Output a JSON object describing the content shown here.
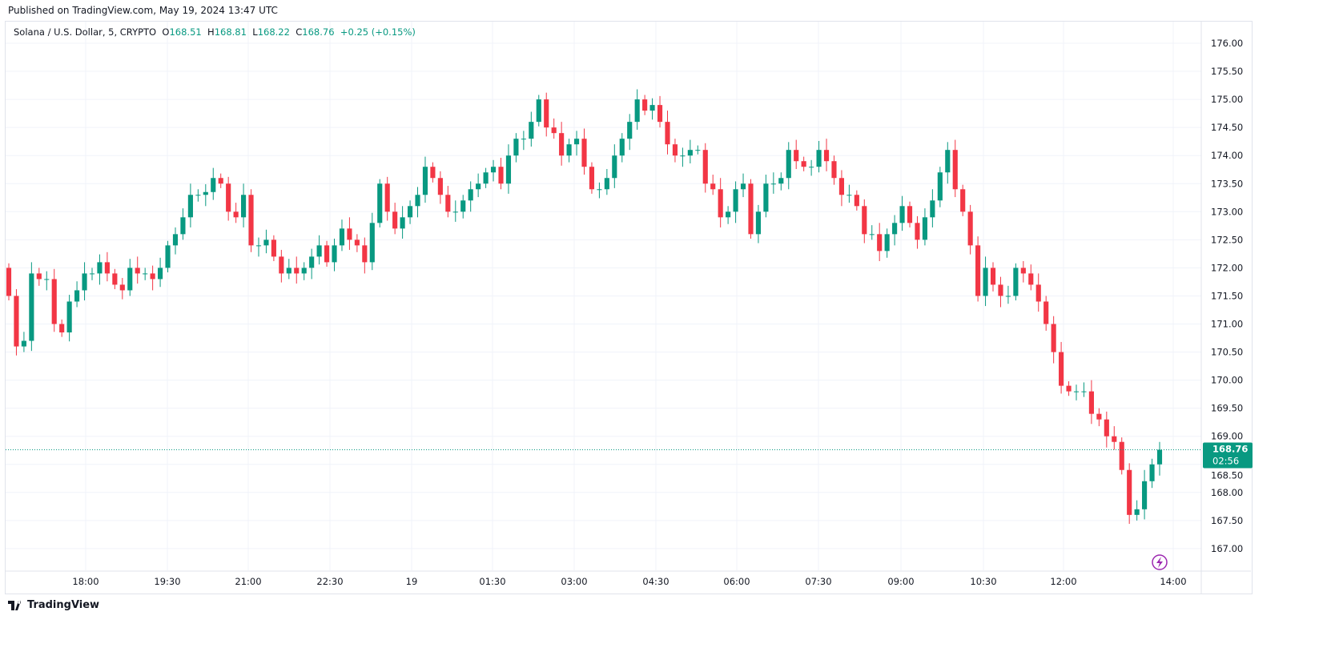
{
  "header": {
    "published": "Published on TradingView.com, May 19, 2024 13:47 UTC",
    "symbol": "Solana / U.S. Dollar, 5, CRYPTO",
    "o_label": "O",
    "o": "168.51",
    "h_label": "H",
    "h": "168.81",
    "l_label": "L",
    "l": "168.22",
    "c_label": "C",
    "c": "168.76",
    "change": "+0.25 (+0.15%)"
  },
  "price_tag": {
    "price": "168.76",
    "countdown": "02:56"
  },
  "footer": {
    "brand": "TradingView"
  },
  "colors": {
    "up": "#089981",
    "down": "#F23645",
    "grid": "#f0f3fa",
    "alert": "#9c27b0"
  },
  "icons": {
    "alert": "lightning-icon",
    "logo": "tradingview-logo-icon"
  },
  "chart_data": {
    "type": "candlestick",
    "interval": "5",
    "ylim": [
      166.6,
      176.3
    ],
    "yticks": [
      "176.00",
      "175.50",
      "175.00",
      "174.50",
      "174.00",
      "173.50",
      "173.00",
      "172.50",
      "172.00",
      "171.50",
      "171.00",
      "170.50",
      "170.00",
      "169.50",
      "169.00",
      "168.50",
      "168.00",
      "167.50",
      "167.00"
    ],
    "xticks": [
      "18:00",
      "19:30",
      "21:00",
      "22:30",
      "19",
      "01:30",
      "03:00",
      "04:30",
      "06:00",
      "07:30",
      "09:00",
      "10:30",
      "12:00",
      "14:00"
    ],
    "grid": true,
    "first_open": 172.0,
    "closes": [
      171.5,
      170.6,
      170.7,
      171.9,
      171.8,
      171.8,
      171.0,
      170.85,
      171.4,
      171.6,
      171.9,
      171.9,
      172.1,
      171.9,
      171.7,
      171.6,
      172.0,
      171.9,
      171.9,
      171.8,
      172.0,
      172.4,
      172.6,
      172.9,
      173.3,
      173.3,
      173.35,
      173.6,
      173.5,
      173.0,
      172.9,
      173.3,
      172.4,
      172.4,
      172.5,
      172.2,
      171.9,
      172.0,
      171.9,
      172.0,
      172.2,
      172.4,
      172.1,
      172.4,
      172.7,
      172.5,
      172.4,
      172.1,
      172.8,
      173.5,
      173.0,
      172.7,
      172.9,
      173.1,
      173.3,
      173.8,
      173.6,
      173.3,
      173.0,
      173.0,
      173.2,
      173.4,
      173.5,
      173.7,
      173.8,
      173.5,
      174.0,
      174.3,
      174.3,
      174.6,
      175.0,
      174.5,
      174.4,
      174.0,
      174.2,
      174.3,
      173.8,
      173.4,
      173.4,
      173.6,
      174.0,
      174.3,
      174.6,
      175.0,
      174.8,
      174.9,
      174.6,
      174.2,
      174.0,
      174.0,
      174.1,
      174.1,
      173.5,
      173.4,
      172.9,
      173.0,
      173.4,
      173.5,
      172.6,
      173.0,
      173.5,
      173.5,
      173.6,
      174.1,
      173.9,
      173.8,
      173.8,
      174.1,
      173.9,
      173.6,
      173.3,
      173.3,
      173.1,
      172.6,
      172.6,
      172.3,
      172.6,
      172.8,
      173.1,
      172.8,
      172.5,
      172.9,
      173.2,
      173.7,
      174.1,
      173.4,
      173.0,
      172.4,
      171.5,
      172.0,
      171.7,
      171.5,
      171.5,
      172.0,
      171.9,
      171.7,
      171.4,
      171.0,
      170.5,
      169.9,
      169.8,
      169.8,
      169.8,
      169.4,
      169.3,
      169.0,
      168.9,
      168.4,
      167.6,
      167.7,
      168.2,
      168.5,
      168.76
    ],
    "last_price": 168.76
  }
}
